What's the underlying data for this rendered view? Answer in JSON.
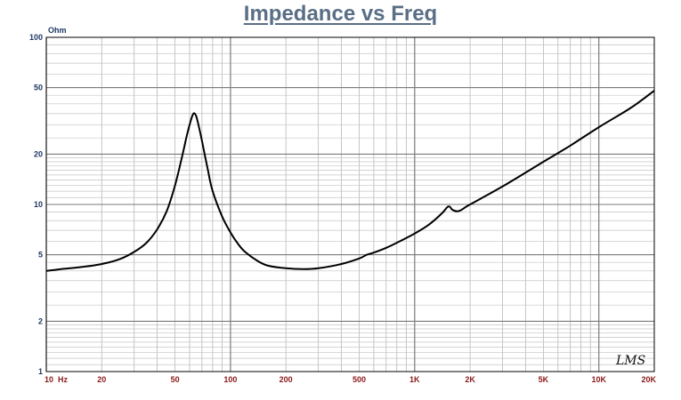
{
  "title": "Impedance vs Freq",
  "brand": "LMS",
  "chart_data": {
    "type": "line",
    "title": "Impedance vs Freq",
    "xlabel": "",
    "ylabel": "",
    "x_scale": "log",
    "y_scale": "log",
    "xlim": [
      10,
      20000
    ],
    "ylim": [
      1,
      100
    ],
    "grid": true,
    "y_unit": "Ohm",
    "x_ticks": [
      {
        "value": 10,
        "label": "10  Hz"
      },
      {
        "value": 20,
        "label": "20"
      },
      {
        "value": 50,
        "label": "50"
      },
      {
        "value": 100,
        "label": "100"
      },
      {
        "value": 200,
        "label": "200"
      },
      {
        "value": 500,
        "label": "500"
      },
      {
        "value": 1000,
        "label": "1K"
      },
      {
        "value": 2000,
        "label": "2K"
      },
      {
        "value": 5000,
        "label": "5K"
      },
      {
        "value": 10000,
        "label": "10K"
      },
      {
        "value": 20000,
        "label": "20K"
      }
    ],
    "y_ticks": [
      {
        "value": 1,
        "label": "1"
      },
      {
        "value": 2,
        "label": "2"
      },
      {
        "value": 5,
        "label": "5"
      },
      {
        "value": 10,
        "label": "10"
      },
      {
        "value": 20,
        "label": "20"
      },
      {
        "value": 50,
        "label": "50"
      },
      {
        "value": 100,
        "label": "100"
      }
    ],
    "series": [
      {
        "color": "#000000",
        "points": [
          [
            10,
            4.0
          ],
          [
            12,
            4.1
          ],
          [
            15,
            4.2
          ],
          [
            20,
            4.4
          ],
          [
            25,
            4.7
          ],
          [
            30,
            5.2
          ],
          [
            35,
            5.9
          ],
          [
            40,
            7.1
          ],
          [
            45,
            9.1
          ],
          [
            50,
            13.0
          ],
          [
            55,
            20.0
          ],
          [
            58,
            26.0
          ],
          [
            61,
            32.0
          ],
          [
            63,
            35.0
          ],
          [
            65,
            34.0
          ],
          [
            67,
            30.0
          ],
          [
            70,
            24.0
          ],
          [
            75,
            16.5
          ],
          [
            80,
            12.0
          ],
          [
            90,
            8.5
          ],
          [
            100,
            6.8
          ],
          [
            110,
            5.8
          ],
          [
            120,
            5.2
          ],
          [
            140,
            4.6
          ],
          [
            160,
            4.3
          ],
          [
            200,
            4.15
          ],
          [
            250,
            4.1
          ],
          [
            300,
            4.15
          ],
          [
            400,
            4.4
          ],
          [
            500,
            4.75
          ],
          [
            550,
            5.0
          ],
          [
            600,
            5.15
          ],
          [
            700,
            5.5
          ],
          [
            800,
            5.9
          ],
          [
            1000,
            6.7
          ],
          [
            1200,
            7.6
          ],
          [
            1400,
            8.8
          ],
          [
            1500,
            9.6
          ],
          [
            1550,
            9.7
          ],
          [
            1600,
            9.3
          ],
          [
            1700,
            9.1
          ],
          [
            1800,
            9.3
          ],
          [
            2000,
            10.0
          ],
          [
            3000,
            12.8
          ],
          [
            5000,
            18.0
          ],
          [
            7000,
            22.5
          ],
          [
            10000,
            29.0
          ],
          [
            15000,
            38.0
          ],
          [
            20000,
            48.0
          ]
        ]
      }
    ]
  }
}
